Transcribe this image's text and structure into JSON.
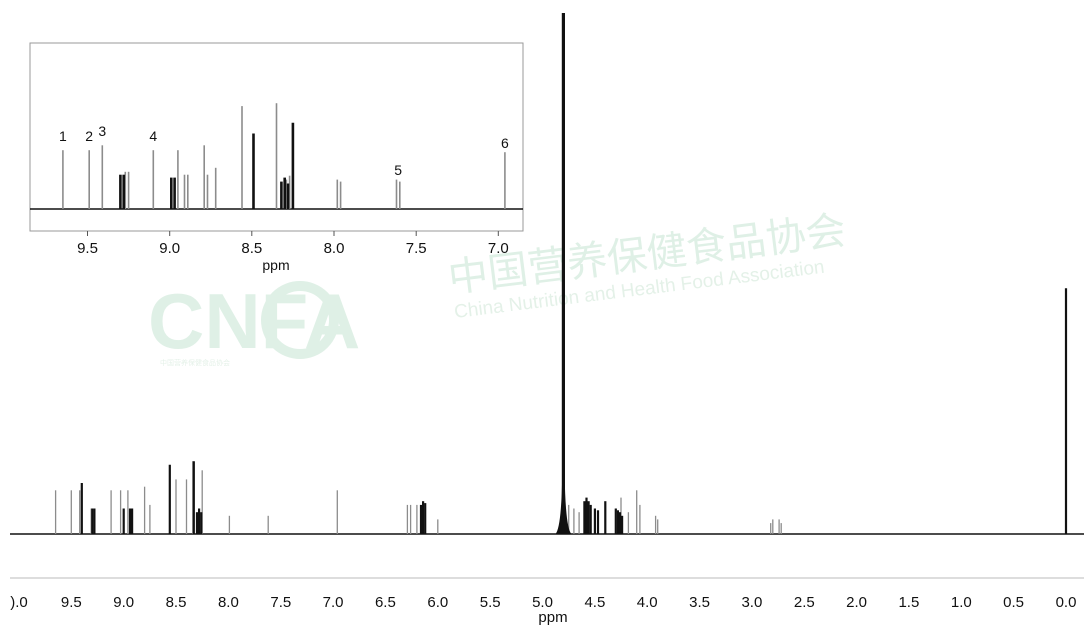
{
  "watermark": {
    "logo_text": "CNFA",
    "cn_name": "中国营养保健食品协会",
    "en_name": "China Nutrition and Health Food Association",
    "logo_small_text": "中国营养保健食品协会",
    "color": "#dff0e6"
  },
  "chart_data": [
    {
      "id": "main",
      "type": "line",
      "title": "",
      "xlabel": "ppm",
      "ylabel": "",
      "x_reversed": true,
      "xlim": [
        10.0,
        0.0
      ],
      "x_tick_labels": [
        ").0",
        "9.5",
        "9.0",
        "8.5",
        "8.0",
        "7.5",
        "7.0",
        "6.5",
        "6.0",
        "5.5",
        "5.0",
        "4.5",
        "4.0",
        "3.5",
        "3.0",
        "2.5",
        "2.0",
        "1.5",
        "1.0",
        "0.5",
        "0.0"
      ],
      "y_axis_visible": false,
      "grid": false,
      "series": [
        {
          "color": "#111111",
          "peaks_ppm": [
            9.4,
            9.3,
            9.28,
            9.0,
            8.94,
            8.92,
            8.56,
            8.33,
            8.3,
            8.28,
            8.26,
            6.16,
            6.14,
            6.12,
            4.8,
            4.6,
            4.58,
            4.56,
            4.54,
            4.5,
            4.47,
            4.4,
            4.3,
            4.28,
            4.26,
            4.24,
            0.0
          ],
          "intensities": [
            0.28,
            0.14,
            0.14,
            0.14,
            0.14,
            0.14,
            0.38,
            0.4,
            0.12,
            0.14,
            0.12,
            0.16,
            0.18,
            0.17,
            3.0,
            0.18,
            0.2,
            0.18,
            0.16,
            0.14,
            0.13,
            0.18,
            0.14,
            0.13,
            0.12,
            0.1,
            1.35
          ]
        },
        {
          "color": "#8c8c8c",
          "peaks_ppm": [
            9.65,
            9.5,
            9.42,
            9.31,
            9.28,
            9.12,
            9.03,
            8.96,
            8.8,
            8.75,
            8.5,
            8.4,
            8.34,
            8.25,
            7.99,
            7.62,
            6.96,
            6.29,
            6.26,
            6.2,
            6.0,
            4.75,
            4.7,
            4.65,
            4.4,
            4.3,
            4.25,
            4.18,
            4.1,
            4.07,
            3.92,
            3.9,
            2.82,
            2.8,
            2.74,
            2.72
          ],
          "intensities": [
            0.24,
            0.24,
            0.24,
            0.14,
            0.14,
            0.24,
            0.24,
            0.24,
            0.26,
            0.16,
            0.3,
            0.3,
            0.4,
            0.35,
            0.1,
            0.1,
            0.24,
            0.16,
            0.16,
            0.16,
            0.08,
            0.16,
            0.14,
            0.12,
            0.14,
            0.12,
            0.2,
            0.12,
            0.24,
            0.16,
            0.1,
            0.08,
            0.06,
            0.08,
            0.08,
            0.06
          ]
        }
      ]
    },
    {
      "id": "inset",
      "type": "line",
      "title": "",
      "xlabel": "ppm",
      "ylabel": "",
      "x_reversed": true,
      "xlim": [
        9.85,
        6.85
      ],
      "x_ticks": [
        9.5,
        9.0,
        8.5,
        8.0,
        7.5,
        7.0
      ],
      "x_tick_labels": [
        "9.5",
        "9.0",
        "8.5",
        "8.0",
        "7.5",
        "7.0"
      ],
      "peak_labels": [
        {
          "text": "1",
          "ppm": 9.65
        },
        {
          "text": "2",
          "ppm": 9.49
        },
        {
          "text": "3",
          "ppm": 9.41
        },
        {
          "text": "4",
          "ppm": 9.1
        },
        {
          "text": "5",
          "ppm": 7.61
        },
        {
          "text": "6",
          "ppm": 6.96
        }
      ],
      "grid": false,
      "series": [
        {
          "color": "#111111",
          "peaks_ppm": [
            9.3,
            9.28,
            8.99,
            8.97,
            8.49,
            8.32,
            8.3,
            8.28,
            8.25
          ],
          "intensities": [
            0.35,
            0.35,
            0.32,
            0.32,
            0.77,
            0.28,
            0.32,
            0.26,
            0.88
          ]
        },
        {
          "color": "#8c8c8c",
          "peaks_ppm": [
            9.65,
            9.49,
            9.41,
            9.27,
            9.25,
            9.1,
            8.95,
            8.91,
            8.89,
            8.79,
            8.77,
            8.72,
            8.56,
            8.35,
            8.29,
            8.27,
            7.98,
            7.96,
            7.62,
            7.6,
            6.96
          ],
          "intensities": [
            0.6,
            0.6,
            0.65,
            0.38,
            0.38,
            0.6,
            0.6,
            0.35,
            0.35,
            0.65,
            0.35,
            0.42,
            1.05,
            1.08,
            0.3,
            0.34,
            0.3,
            0.28,
            0.3,
            0.28,
            0.58
          ]
        }
      ]
    }
  ]
}
